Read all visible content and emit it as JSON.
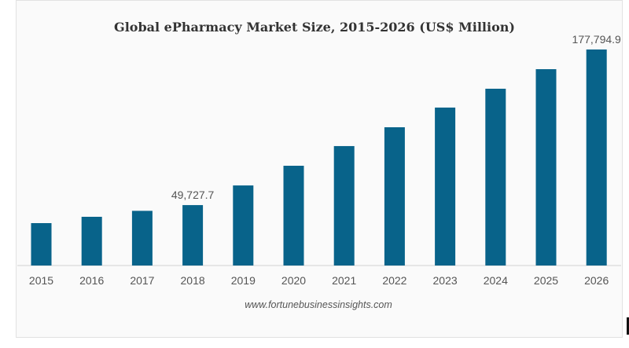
{
  "chart_data": {
    "type": "bar",
    "title": "Global ePharmacy Market Size, 2015-2026 (US$ Million)",
    "categories": [
      "2015",
      "2016",
      "2017",
      "2018",
      "2019",
      "2020",
      "2021",
      "2022",
      "2023",
      "2024",
      "2025",
      "2026"
    ],
    "values": [
      34900,
      40100,
      45000,
      49727.7,
      65900,
      82100,
      98300,
      113800,
      130000,
      145500,
      161600,
      177794.9
    ],
    "data_labels": {
      "2018": "49,727.7",
      "2026": "177,794.9"
    },
    "xlabel": "",
    "ylabel": "",
    "ylim": [
      0,
      177794.9
    ],
    "grid": false,
    "bar_color": "#08638a",
    "source": "www.fortunebusinessinsights.com"
  }
}
